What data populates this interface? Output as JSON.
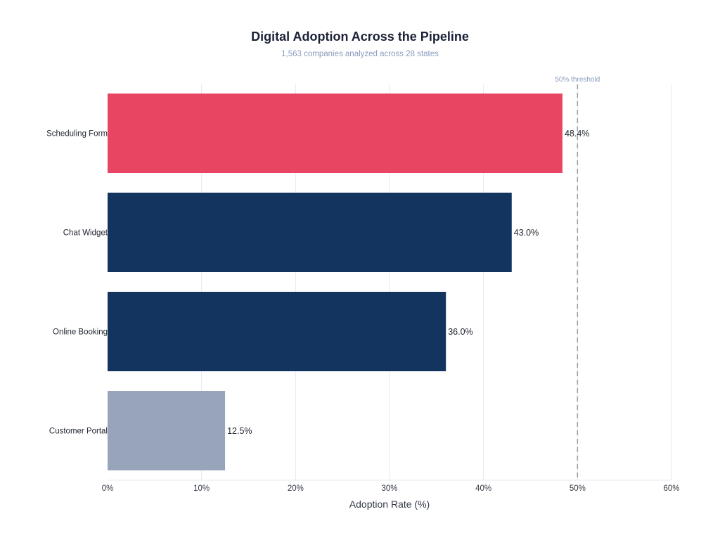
{
  "chart_data": {
    "type": "bar",
    "orientation": "horizontal",
    "title": "Digital Adoption Across the Pipeline",
    "subtitle": "1,563 companies analyzed across 28 states",
    "xlabel": "Adoption Rate (%)",
    "ylabel": "",
    "xlim": [
      0,
      60
    ],
    "x_ticks": [
      0,
      10,
      20,
      30,
      40,
      50,
      60
    ],
    "x_tick_labels": [
      "0%",
      "10%",
      "20%",
      "30%",
      "40%",
      "50%",
      "60%"
    ],
    "categories": [
      "Scheduling Form",
      "Chat Widget",
      "Online Booking",
      "Customer Portal"
    ],
    "values": [
      48.4,
      43.0,
      36.0,
      12.5
    ],
    "value_labels": [
      "48.4%",
      "43.0%",
      "36.0%",
      "12.5%"
    ],
    "bar_colors": [
      "#e84563",
      "#12345e",
      "#12345e",
      "#97a4ba"
    ],
    "reference_line": {
      "value": 50,
      "label": "50% threshold",
      "color": "#9aa0a8",
      "style": "dashed"
    },
    "grid": {
      "vertical": true,
      "horizontal": false,
      "color": "#e6e9ee"
    },
    "legend": "none"
  }
}
